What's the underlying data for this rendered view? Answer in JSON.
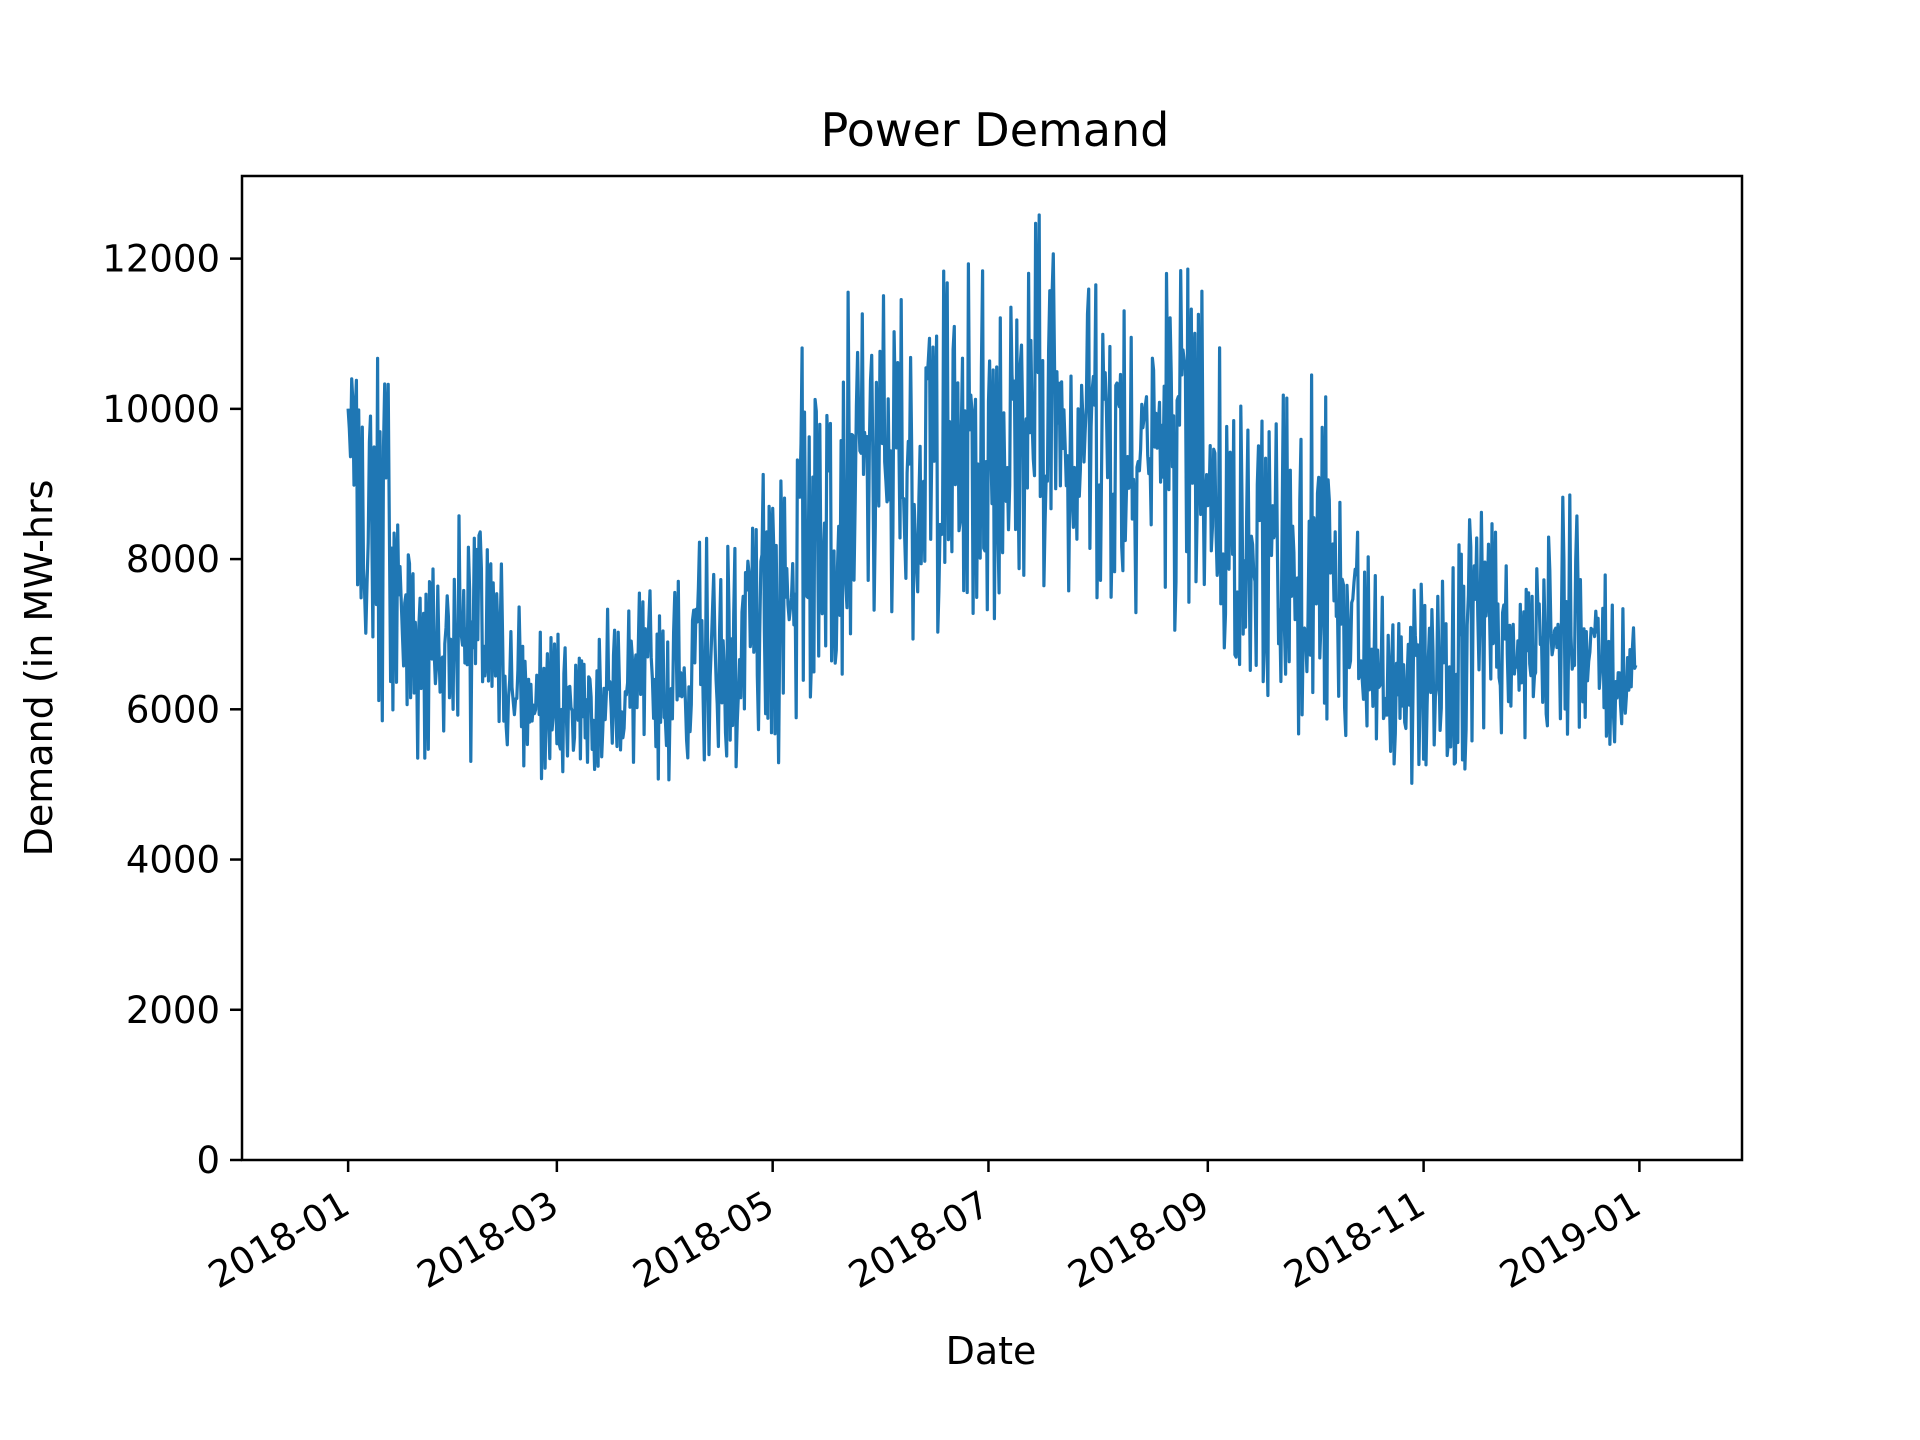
{
  "chart_data": {
    "type": "line",
    "title": "Power Demand",
    "xlabel": "Date",
    "ylabel": "Demand (in MW-hrs",
    "xlim": [
      "2017-12-02",
      "2019-01-30"
    ],
    "ylim": [
      0,
      13100
    ],
    "x_ticks": [
      "2018-01",
      "2018-03",
      "2018-05",
      "2018-07",
      "2018-09",
      "2018-11",
      "2019-01"
    ],
    "y_ticks": [
      0,
      2000,
      4000,
      6000,
      8000,
      10000,
      12000
    ],
    "grid": false,
    "legend": "none",
    "colors": {
      "line": "#1f77b4",
      "axes": "#000000",
      "background": "#ffffff"
    },
    "series": [
      {
        "x": [
          "2018-01-01",
          "2018-01-06",
          "2018-01-11",
          "2018-01-16",
          "2018-01-21",
          "2018-01-26",
          "2018-01-31",
          "2018-02-05",
          "2018-02-10",
          "2018-02-15",
          "2018-02-20",
          "2018-02-25",
          "2018-03-02",
          "2018-03-07",
          "2018-03-12",
          "2018-03-17",
          "2018-03-22",
          "2018-03-27",
          "2018-04-01",
          "2018-04-06",
          "2018-04-11",
          "2018-04-16",
          "2018-04-21",
          "2018-04-26",
          "2018-05-01",
          "2018-05-06",
          "2018-05-11",
          "2018-05-16",
          "2018-05-21",
          "2018-05-26",
          "2018-05-31",
          "2018-06-05",
          "2018-06-10",
          "2018-06-15",
          "2018-06-20",
          "2018-06-25",
          "2018-06-30",
          "2018-07-05",
          "2018-07-10",
          "2018-07-15",
          "2018-07-20",
          "2018-07-25",
          "2018-07-30",
          "2018-08-04",
          "2018-08-09",
          "2018-08-14",
          "2018-08-19",
          "2018-08-24",
          "2018-08-29",
          "2018-09-03",
          "2018-09-08",
          "2018-09-13",
          "2018-09-18",
          "2018-09-23",
          "2018-09-28",
          "2018-10-03",
          "2018-10-08",
          "2018-10-13",
          "2018-10-18",
          "2018-10-23",
          "2018-10-28",
          "2018-11-02",
          "2018-11-07",
          "2018-11-12",
          "2018-11-17",
          "2018-11-22",
          "2018-11-27",
          "2018-12-02",
          "2018-12-07",
          "2018-12-12",
          "2018-12-17",
          "2018-12-22",
          "2018-12-27",
          "2018-12-31"
        ],
        "low": [
          8800,
          6500,
          5800,
          5400,
          5200,
          5300,
          5400,
          5300,
          5200,
          5100,
          5100,
          5000,
          5100,
          5200,
          5200,
          5100,
          5100,
          5100,
          5000,
          5000,
          5000,
          5000,
          5000,
          5000,
          5100,
          5400,
          5800,
          6100,
          6400,
          6600,
          6800,
          6900,
          6900,
          7000,
          6900,
          7000,
          7100,
          7100,
          7300,
          7400,
          7500,
          7400,
          7400,
          7300,
          7300,
          7200,
          7100,
          7000,
          6900,
          6700,
          6300,
          6000,
          5800,
          5700,
          5600,
          5500,
          5300,
          5100,
          5000,
          4900,
          4900,
          4900,
          5000,
          5000,
          5100,
          5300,
          5400,
          5500,
          5600,
          5600,
          5500,
          5400,
          5300,
          6400
        ],
        "high": [
          10900,
          10000,
          11400,
          9200,
          8600,
          8400,
          8500,
          9600,
          8400,
          7900,
          7200,
          7000,
          7100,
          7100,
          7200,
          7400,
          7500,
          7600,
          7800,
          8100,
          8300,
          8400,
          8300,
          8800,
          9500,
          10500,
          11000,
          11200,
          11500,
          11700,
          11800,
          11700,
          11600,
          11700,
          11900,
          12000,
          11900,
          12000,
          12300,
          12600,
          12700,
          12300,
          12200,
          12000,
          11900,
          12000,
          12100,
          12000,
          11700,
          11200,
          10300,
          9800,
          10000,
          10300,
          10500,
          10400,
          9500,
          8700,
          7800,
          7500,
          7900,
          8100,
          8300,
          9700,
          8900,
          8300,
          7700,
          8400,
          8800,
          8900,
          8200,
          7900,
          7500,
          7000
        ]
      }
    ]
  }
}
